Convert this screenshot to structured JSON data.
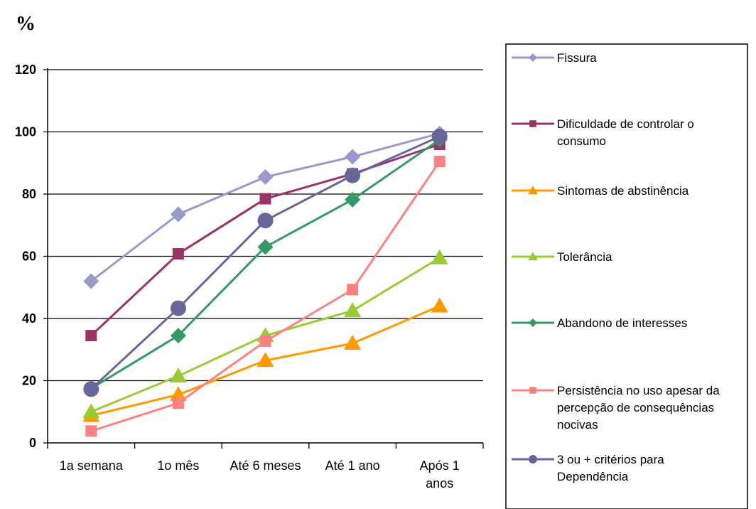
{
  "chart_data": {
    "type": "line",
    "ylabel": "%",
    "ylim": [
      0,
      120
    ],
    "yticks": [
      0,
      20,
      40,
      60,
      80,
      100,
      120
    ],
    "categories": [
      [
        "1a semana"
      ],
      [
        "1o mês"
      ],
      [
        "Até 6 meses"
      ],
      [
        "Até 1 ano"
      ],
      [
        "Após 1",
        "anos"
      ]
    ],
    "grid": true,
    "legend_position": "right",
    "series": [
      {
        "name": [
          "Fissura"
        ],
        "values": [
          52,
          73.5,
          85.5,
          92,
          99.5
        ],
        "color": "#9999cc",
        "marker": "diamond"
      },
      {
        "name": [
          "Dificuldade de controlar o",
          "consumo"
        ],
        "values": [
          34.5,
          60.8,
          78.5,
          86.5,
          96
        ],
        "color": "#993366",
        "marker": "square"
      },
      {
        "name": [
          "Sintomas de abstinência"
        ],
        "values": [
          8.8,
          15.5,
          26.5,
          32,
          44
        ],
        "color": "#ff9900",
        "marker": "triangle"
      },
      {
        "name": [
          "Tolerância"
        ],
        "values": [
          10,
          21.5,
          34.5,
          42.5,
          59.5
        ],
        "color": "#99cc33",
        "marker": "triangle"
      },
      {
        "name": [
          "Abandono de interesses"
        ],
        "values": [
          17.5,
          34.5,
          63,
          78.2,
          97.5
        ],
        "color": "#339966",
        "marker": "diamond"
      },
      {
        "name": [
          "Persistência no uso apesar da",
          "percepção de consequências",
          "nocivas"
        ],
        "values": [
          3.8,
          12.8,
          32.7,
          49.3,
          90.5
        ],
        "color": "#ff8080",
        "marker": "square"
      },
      {
        "name": [
          "3 ou + critérios para",
          "Dependência"
        ],
        "values": [
          17.3,
          43.3,
          71.5,
          86,
          98.5
        ],
        "color": "#666699",
        "marker": "circle"
      }
    ]
  }
}
